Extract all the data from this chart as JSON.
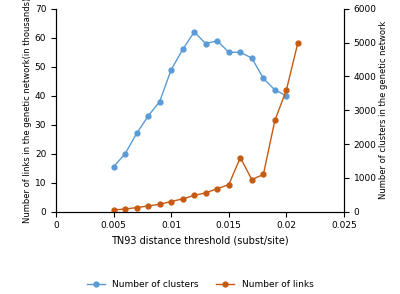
{
  "x_clusters": [
    0.005,
    0.006,
    0.007,
    0.008,
    0.009,
    0.01,
    0.011,
    0.012,
    0.013,
    0.014,
    0.015,
    0.016,
    0.017,
    0.018,
    0.019,
    0.02
  ],
  "clusters": [
    15.5,
    20,
    27,
    33,
    38,
    49,
    56,
    62,
    58,
    59,
    55,
    55,
    53,
    46,
    42,
    40
  ],
  "x_links": [
    0.005,
    0.006,
    0.007,
    0.008,
    0.009,
    0.01,
    0.011,
    0.012,
    0.013,
    0.014,
    0.015,
    0.016,
    0.017,
    0.018,
    0.019,
    0.02,
    0.021
  ],
  "links": [
    50,
    80,
    120,
    170,
    220,
    300,
    380,
    480,
    560,
    680,
    800,
    1600,
    950,
    1100,
    2700,
    3600,
    5000
  ],
  "cluster_color": "#5B9BD5",
  "links_color": "#C55A11",
  "xlabel": "TN93 distance threshold (subst/site)",
  "ylabel_left": "Number of links in the genetic network(in thousands)",
  "ylabel_right": "Number of clusters in the genetic network",
  "xlim": [
    0,
    0.025
  ],
  "ylim_left": [
    0,
    70
  ],
  "ylim_right": [
    0,
    6000
  ],
  "xticks": [
    0,
    0.005,
    0.01,
    0.015,
    0.02,
    0.025
  ],
  "yticks_left": [
    0,
    10,
    20,
    30,
    40,
    50,
    60,
    70
  ],
  "yticks_right": [
    0,
    1000,
    2000,
    3000,
    4000,
    5000,
    6000
  ],
  "legend_labels": [
    "Number of clusters",
    "Number of links"
  ],
  "bg_color": "#ffffff",
  "marker": "o",
  "markersize": 3.5,
  "linewidth": 1.0
}
